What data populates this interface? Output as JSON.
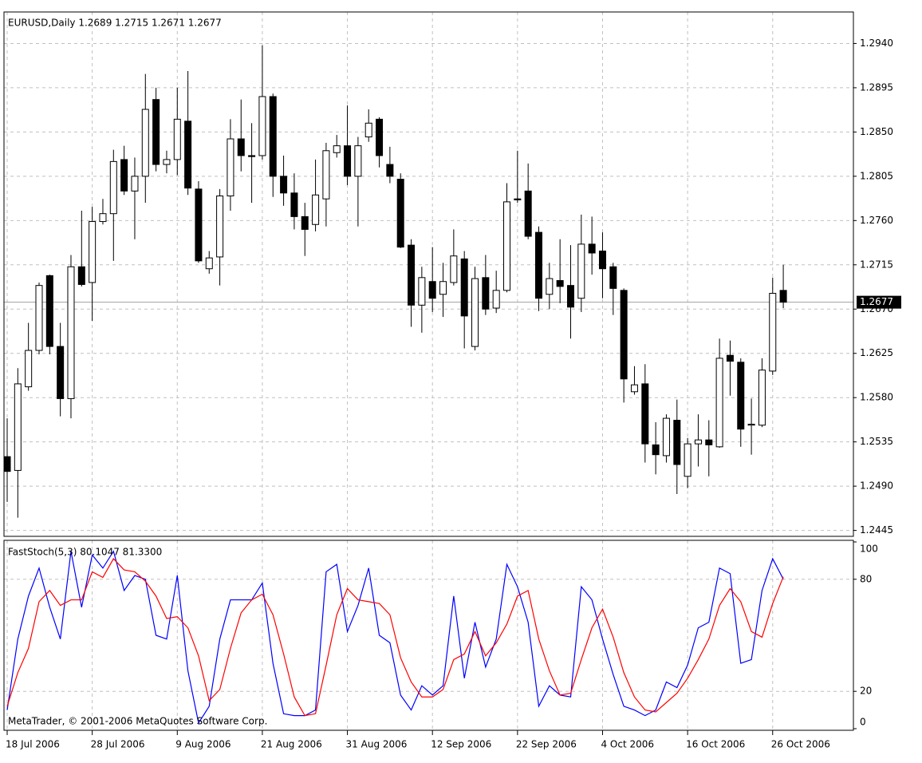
{
  "chart_data": [
    {
      "type": "candlestick",
      "title": "EURUSD,Daily  1.2689 1.2715 1.2671 1.2677",
      "categories": [
        "18 Jul 2006",
        null,
        null,
        null,
        null,
        null,
        null,
        null,
        "28 Jul 2006",
        null,
        null,
        null,
        null,
        null,
        null,
        null,
        "9 Aug 2006",
        null,
        null,
        null,
        null,
        null,
        null,
        null,
        "21 Aug 2006",
        null,
        null,
        null,
        null,
        null,
        null,
        null,
        "31 Aug 2006",
        null,
        null,
        null,
        null,
        null,
        null,
        null,
        "12 Sep 2006",
        null,
        null,
        null,
        null,
        null,
        null,
        null,
        "22 Sep 2006",
        null,
        null,
        null,
        null,
        null,
        null,
        null,
        "4 Oct 2006",
        null,
        null,
        null,
        null,
        null,
        null,
        null,
        "16 Oct 2006",
        null,
        null,
        null,
        null,
        null,
        null,
        null,
        "26 Oct 2006",
        null
      ],
      "open": [
        1.252,
        1.2506,
        1.2591,
        1.2628,
        1.2704,
        1.2632,
        1.2579,
        1.2713,
        1.2697,
        1.2759,
        1.2767,
        1.2822,
        1.279,
        1.2805,
        1.2883,
        1.2817,
        1.2822,
        1.2861,
        1.2792,
        1.2711,
        1.2723,
        1.2785,
        1.2843,
        1.2826,
        1.2826,
        1.2886,
        1.2805,
        1.2788,
        1.2764,
        1.2756,
        1.2782,
        1.2829,
        1.2836,
        1.2805,
        1.2845,
        1.2863,
        1.2817,
        1.2802,
        1.2735,
        1.2674,
        1.2698,
        1.2685,
        1.2697,
        1.2721,
        1.2632,
        1.2702,
        1.2671,
        1.2689,
        1.2782,
        1.279,
        1.2748,
        1.2685,
        1.2699,
        1.2694,
        1.2681,
        1.2736,
        1.2729,
        1.2713,
        1.2689,
        1.2586,
        1.2594,
        1.2532,
        1.2521,
        1.2557,
        1.25,
        1.2533,
        1.2537,
        1.253,
        1.2623,
        1.2616,
        1.2552,
        1.2552,
        1.2607,
        1.2689
      ],
      "high": [
        1.2559,
        1.261,
        1.2656,
        1.2697,
        1.2705,
        1.2656,
        1.2725,
        1.277,
        1.2774,
        1.2782,
        1.2832,
        1.2836,
        1.2824,
        1.2909,
        1.2895,
        1.2831,
        1.2895,
        1.2912,
        1.28,
        1.2729,
        1.2792,
        1.2863,
        1.2883,
        1.2859,
        1.2938,
        1.2889,
        1.2826,
        1.2808,
        1.2778,
        1.2822,
        1.2839,
        1.2847,
        1.2877,
        1.2845,
        1.2873,
        1.2865,
        1.2835,
        1.2808,
        1.2741,
        1.2713,
        1.2733,
        1.2717,
        1.2751,
        1.2729,
        1.2713,
        1.2725,
        1.2709,
        1.2798,
        1.2831,
        1.2818,
        1.2754,
        1.2717,
        1.2741,
        1.2735,
        1.2766,
        1.2764,
        1.2748,
        1.2717,
        1.2691,
        1.2612,
        1.2614,
        1.2555,
        1.2563,
        1.2578,
        1.2539,
        1.2563,
        1.2557,
        1.264,
        1.2638,
        1.262,
        1.2579,
        1.262,
        1.2702,
        1.2715
      ],
      "low": [
        1.2474,
        1.2458,
        1.2587,
        1.2624,
        1.2624,
        1.2561,
        1.2559,
        1.2693,
        1.2658,
        1.2756,
        1.2719,
        1.2786,
        1.2741,
        1.2778,
        1.281,
        1.2808,
        1.2806,
        1.2786,
        1.2717,
        1.2706,
        1.2694,
        1.277,
        1.281,
        1.2778,
        1.2822,
        1.2784,
        1.2775,
        1.2751,
        1.2724,
        1.2749,
        1.2754,
        1.2824,
        1.2796,
        1.2754,
        1.284,
        1.2814,
        1.2798,
        1.2732,
        1.2652,
        1.2646,
        1.2667,
        1.2662,
        1.2694,
        1.263,
        1.2628,
        1.2664,
        1.2666,
        1.2687,
        1.2778,
        1.2741,
        1.2668,
        1.267,
        1.2676,
        1.264,
        1.2667,
        1.2705,
        1.2681,
        1.2664,
        1.2575,
        1.2583,
        1.2514,
        1.2502,
        1.2514,
        1.2482,
        1.2488,
        1.251,
        1.25,
        1.2529,
        1.2582,
        1.253,
        1.2522,
        1.255,
        1.2603,
        1.2671
      ],
      "close": [
        1.2505,
        1.2594,
        1.2628,
        1.2694,
        1.2632,
        1.2579,
        1.2713,
        1.2695,
        1.2759,
        1.2767,
        1.282,
        1.279,
        1.2805,
        1.2873,
        1.2817,
        1.2822,
        1.2863,
        1.2793,
        1.2719,
        1.2722,
        1.2785,
        1.2843,
        1.2826,
        1.2825,
        1.2886,
        1.2805,
        1.2788,
        1.2764,
        1.2751,
        1.2786,
        1.2831,
        1.2836,
        1.2805,
        1.2836,
        1.2859,
        1.2826,
        1.2805,
        1.2733,
        1.2674,
        1.2702,
        1.2681,
        1.2698,
        1.2724,
        1.2663,
        1.2701,
        1.267,
        1.2689,
        1.2779,
        1.2781,
        1.2744,
        1.2681,
        1.2701,
        1.2693,
        1.2672,
        1.2736,
        1.2727,
        1.2711,
        1.2691,
        1.2599,
        1.2593,
        1.2533,
        1.2522,
        1.2559,
        1.2512,
        1.2533,
        1.2537,
        1.2532,
        1.262,
        1.2617,
        1.2548,
        1.2553,
        1.2608,
        1.2686,
        1.2677
      ],
      "ylim": [
        1.2439,
        1.2972
      ],
      "yticks": [
        1.2445,
        {
          "value": 1.249,
          "label": "1.2490"
        },
        1.2535,
        {
          "value": 1.258,
          "label": "1.2580"
        },
        1.2625,
        {
          "value": 1.267,
          "label": "1.2670"
        },
        1.2715,
        {
          "value": 1.276,
          "label": "1.2760"
        },
        1.2805,
        {
          "value": 1.285,
          "label": "1.2850"
        },
        1.2895,
        {
          "value": 1.294,
          "label": "1.2940"
        }
      ],
      "grid": true
    },
    {
      "type": "line",
      "title": "FastStoch(5,3) 80.1047 81.3300",
      "series": [
        {
          "color": "#0000ff",
          "values": [
            10,
            48,
            71,
            86,
            65,
            48,
            95,
            65,
            93,
            86,
            95,
            74,
            82,
            80,
            50,
            48,
            82,
            31,
            3,
            12,
            48,
            69,
            69,
            69,
            78,
            35,
            8,
            7,
            7,
            10,
            84,
            88,
            52,
            66,
            86,
            50,
            46,
            18,
            10,
            23,
            18,
            23,
            71,
            27,
            57,
            33,
            48,
            88,
            76,
            57,
            12,
            23,
            18,
            17,
            76,
            69,
            48,
            29,
            12,
            10,
            7,
            10,
            25,
            22,
            34,
            54,
            57,
            86,
            83,
            35,
            37,
            74,
            91,
            80.1047
          ]
        },
        {
          "color": "#ff0000",
          "values": [
            12,
            30,
            43,
            68,
            74,
            66,
            69,
            69,
            84,
            81,
            91,
            85,
            84,
            79,
            71,
            59,
            60,
            54,
            39,
            15,
            21,
            43,
            62,
            69,
            72,
            61,
            40,
            17,
            7,
            8,
            34,
            61,
            75,
            69,
            68,
            67,
            61,
            38,
            25,
            17,
            17,
            21,
            37,
            40,
            52,
            39,
            46,
            56,
            71,
            74,
            48,
            31,
            18,
            19,
            37,
            54,
            64,
            49,
            30,
            17,
            10,
            9,
            14,
            19,
            27,
            37,
            48,
            66,
            75,
            68,
            52,
            49,
            67,
            81.33
          ]
        }
      ],
      "ylim": [
        0,
        100
      ],
      "yticks": [
        0,
        20,
        80,
        100
      ],
      "grid": true,
      "annotation": "MetaTrader, © 2001-2006 MetaQuotes Software Corp."
    }
  ]
}
